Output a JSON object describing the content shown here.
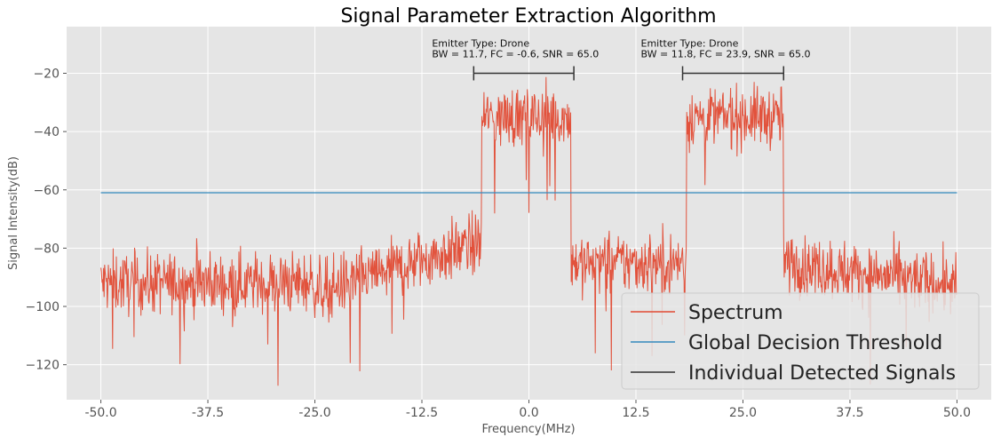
{
  "chart_data": {
    "type": "line",
    "title": "Signal Parameter Extraction Algorithm",
    "xlabel": "Frequency(MHz)",
    "ylabel": "Signal Intensity(dB)",
    "xlim": [
      -54,
      54
    ],
    "ylim": [
      -132,
      -4
    ],
    "x_ticks": [
      -50.0,
      -37.5,
      -25.0,
      -12.5,
      0.0,
      12.5,
      25.0,
      37.5,
      50.0
    ],
    "x_tick_labels": [
      "-50.0",
      "-37.5",
      "-25.0",
      "-12.5",
      "0.0",
      "12.5",
      "25.0",
      "37.5",
      "50.0"
    ],
    "y_ticks": [
      -20,
      -40,
      -60,
      -80,
      -100,
      -120
    ],
    "y_tick_labels": [
      "−20",
      "−40",
      "−60",
      "−80",
      "−100",
      "−120"
    ],
    "grid": true,
    "legend_position": "lower-right",
    "series": [
      {
        "name": "Spectrum",
        "color": "#E24A33",
        "x_range": [
          -50,
          50
        ],
        "noise_floor_db": [
          {
            "from": -50,
            "to": -25,
            "level": -92
          },
          {
            "from": -25,
            "to": -5.5,
            "level": [
              -95,
              -78
            ]
          },
          {
            "from": 4.9,
            "to": 18.4,
            "level": -85
          },
          {
            "from": 29.7,
            "to": 50,
            "level": [
              -85,
              -93
            ]
          }
        ],
        "emission_bands_db": [
          {
            "from": -5.5,
            "to": 4.9,
            "level": -35
          },
          {
            "from": 18.4,
            "to": 29.7,
            "level": -35
          }
        ],
        "fluctuation_db": 9
      },
      {
        "name": "Global Decision Threshold",
        "color": "#348ABD",
        "x": [
          -50,
          50
        ],
        "y": [
          -61,
          -61
        ]
      },
      {
        "name": "Individual Detected Signals",
        "color": "#333333",
        "segments": [
          {
            "x": [
              -6.45,
              5.25
            ],
            "y": -20
          },
          {
            "x": 17.95,
            "x_end": 29.75,
            "y": -20
          }
        ]
      }
    ],
    "annotations": [
      {
        "line1": "Emitter Type: Drone",
        "line2": "BW = 11.7, FC = -0.6, SNR = 65.0"
      },
      {
        "line1": "Emitter Type: Drone",
        "line2": "BW = 11.8, FC = 23.9, SNR = 65.0"
      }
    ],
    "colors": {
      "background": "#E5E5E5",
      "grid": "#FFFFFF",
      "text": "#555555"
    }
  }
}
